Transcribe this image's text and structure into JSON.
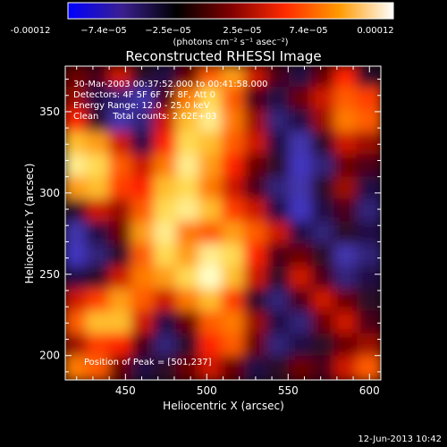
{
  "chart_data": {
    "type": "heatmap",
    "title": "Reconstructed RHESSI Image",
    "xlabel": "Heliocentric X (arcsec)",
    "ylabel": "Heliocentric Y (arcsec)",
    "xlim": [
      413,
      607
    ],
    "ylim": [
      185,
      378
    ],
    "x_ticks": [
      "450",
      "500",
      "550",
      "600"
    ],
    "y_ticks": [
      "200",
      "250",
      "300",
      "350"
    ],
    "colorbar": {
      "tick_labels": [
        "-0.00012",
        "−7.4e−05",
        "−2.5e−05",
        "2.5e−05",
        "7.4e−05",
        "0.00012"
      ],
      "unit_label": "(photons cm⁻² s⁻¹ asec⁻²)",
      "min": -0.00012,
      "max": 0.00012,
      "colors": [
        "#0000ff",
        "#3a1f8f",
        "#000000",
        "#7f0000",
        "#ff2a00",
        "#ff9a00",
        "#ffffff"
      ]
    },
    "annotations": [
      "30-Mar-2003 00:37:52.000 to 00:41:58.000",
      "Detectors: 4F 5F 6F 7F 8F, Att 0",
      "Energy Range: 12.0 - 25.0 keV",
      "Clean     Total counts: 2.62E+03",
      "Position of Peak = [501,237]"
    ],
    "peak": [
      501,
      237
    ],
    "intensity_grid": {
      "rows_from_top": true,
      "x_range": [
        413,
        607
      ],
      "y_range": [
        185,
        378
      ],
      "values": [
        [
          0.45,
          0.4,
          0.55,
          0.35,
          0.3,
          0.45,
          0.7,
          0.8,
          0.55,
          0.4,
          0.3,
          0.45,
          0.6,
          0.35
        ],
        [
          0.5,
          0.3,
          0.25,
          0.2,
          0.4,
          0.75,
          0.9,
          0.7,
          0.4,
          0.3,
          0.45,
          0.55,
          0.7,
          0.65
        ],
        [
          0.6,
          0.35,
          0.2,
          0.25,
          0.55,
          0.85,
          0.95,
          0.75,
          0.5,
          0.25,
          0.3,
          0.5,
          0.75,
          0.7
        ],
        [
          0.85,
          0.8,
          0.55,
          0.3,
          0.6,
          0.9,
          0.85,
          0.7,
          0.55,
          0.3,
          0.2,
          0.35,
          0.55,
          0.5
        ],
        [
          0.95,
          0.9,
          0.7,
          0.55,
          0.75,
          0.95,
          0.8,
          0.6,
          0.45,
          0.35,
          0.15,
          0.25,
          0.45,
          0.4
        ],
        [
          0.8,
          0.85,
          0.65,
          0.6,
          0.85,
          0.9,
          0.75,
          0.55,
          0.4,
          0.25,
          0.2,
          0.35,
          0.5,
          0.3
        ],
        [
          0.35,
          0.55,
          0.5,
          0.7,
          0.9,
          0.95,
          0.85,
          0.65,
          0.55,
          0.3,
          0.15,
          0.3,
          0.4,
          0.25
        ],
        [
          0.2,
          0.3,
          0.45,
          0.8,
          0.95,
          0.75,
          0.7,
          0.8,
          0.7,
          0.55,
          0.3,
          0.25,
          0.35,
          0.3
        ],
        [
          0.15,
          0.25,
          0.35,
          0.7,
          0.9,
          0.8,
          0.95,
          0.9,
          0.6,
          0.4,
          0.45,
          0.35,
          0.2,
          0.25
        ],
        [
          0.3,
          0.35,
          0.55,
          0.75,
          0.8,
          0.9,
          1.0,
          0.85,
          0.55,
          0.35,
          0.55,
          0.4,
          0.25,
          0.3
        ],
        [
          0.55,
          0.65,
          0.8,
          0.7,
          0.55,
          0.75,
          0.85,
          0.65,
          0.35,
          0.25,
          0.4,
          0.55,
          0.45,
          0.35
        ],
        [
          0.7,
          0.85,
          0.85,
          0.55,
          0.3,
          0.45,
          0.7,
          0.75,
          0.5,
          0.3,
          0.25,
          0.45,
          0.55,
          0.4
        ],
        [
          0.5,
          0.65,
          0.6,
          0.4,
          0.25,
          0.35,
          0.6,
          0.7,
          0.45,
          0.25,
          0.3,
          0.35,
          0.45,
          0.5
        ],
        [
          0.75,
          0.7,
          0.45,
          0.3,
          0.35,
          0.45,
          0.55,
          0.45,
          0.3,
          0.35,
          0.45,
          0.4,
          0.55,
          0.7
        ]
      ]
    }
  },
  "footer": {
    "timestamp": "12-Jun-2013 10:42"
  }
}
